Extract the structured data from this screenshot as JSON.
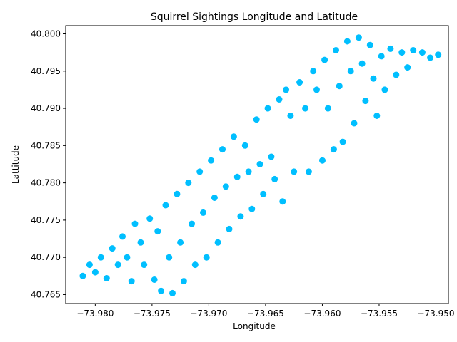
{
  "chart_data": {
    "type": "scatter",
    "title": "Squirrel Sightings Longitude and Latitude",
    "xlabel": "Longitude",
    "ylabel": "Lattitude",
    "xlim": [
      -73.9826,
      -73.9489
    ],
    "ylim": [
      40.7638,
      40.8011
    ],
    "xticks": [
      -73.98,
      -73.975,
      -73.97,
      -73.965,
      -73.96,
      -73.955,
      -73.95
    ],
    "xtick_labels": [
      "−73.980",
      "−73.975",
      "−73.970",
      "−73.965",
      "−73.960",
      "−73.955",
      "−73.950"
    ],
    "yticks": [
      40.765,
      40.77,
      40.775,
      40.78,
      40.785,
      40.79,
      40.795,
      40.8
    ],
    "ytick_labels": [
      "40.765",
      "40.770",
      "40.775",
      "40.780",
      "40.785",
      "40.790",
      "40.795",
      "40.800"
    ],
    "grid": false,
    "marker_color": "#00bfff",
    "series": [
      {
        "points": [
          [
            -73.9811,
            40.7675
          ],
          [
            -73.9805,
            40.769
          ],
          [
            -73.98,
            40.768
          ],
          [
            -73.9795,
            40.77
          ],
          [
            -73.979,
            40.7672
          ],
          [
            -73.9785,
            40.7712
          ],
          [
            -73.978,
            40.769
          ],
          [
            -73.9776,
            40.7728
          ],
          [
            -73.9772,
            40.77
          ],
          [
            -73.9768,
            40.7668
          ],
          [
            -73.9765,
            40.7745
          ],
          [
            -73.976,
            40.772
          ],
          [
            -73.9757,
            40.769
          ],
          [
            -73.9752,
            40.7752
          ],
          [
            -73.9748,
            40.767
          ],
          [
            -73.9745,
            40.7735
          ],
          [
            -73.9742,
            40.7655
          ],
          [
            -73.9738,
            40.777
          ],
          [
            -73.9735,
            40.77
          ],
          [
            -73.9732,
            40.7652
          ],
          [
            -73.9728,
            40.7785
          ],
          [
            -73.9725,
            40.772
          ],
          [
            -73.9722,
            40.7668
          ],
          [
            -73.9718,
            40.78
          ],
          [
            -73.9715,
            40.7745
          ],
          [
            -73.9712,
            40.769
          ],
          [
            -73.9708,
            40.7815
          ],
          [
            -73.9705,
            40.776
          ],
          [
            -73.9702,
            40.77
          ],
          [
            -73.9698,
            40.783
          ],
          [
            -73.9695,
            40.778
          ],
          [
            -73.9692,
            40.772
          ],
          [
            -73.9688,
            40.7845
          ],
          [
            -73.9685,
            40.7795
          ],
          [
            -73.9682,
            40.7738
          ],
          [
            -73.9678,
            40.7862
          ],
          [
            -73.9675,
            40.7808
          ],
          [
            -73.9672,
            40.7755
          ],
          [
            -73.9668,
            40.785
          ],
          [
            -73.9665,
            40.7815
          ],
          [
            -73.9662,
            40.7765
          ],
          [
            -73.9658,
            40.7885
          ],
          [
            -73.9655,
            40.7825
          ],
          [
            -73.9652,
            40.7785
          ],
          [
            -73.9648,
            40.79
          ],
          [
            -73.9645,
            40.7835
          ],
          [
            -73.9642,
            40.7805
          ],
          [
            -73.9638,
            40.7912
          ],
          [
            -73.9635,
            40.7775
          ],
          [
            -73.9632,
            40.7925
          ],
          [
            -73.9628,
            40.789
          ],
          [
            -73.9625,
            40.7815
          ],
          [
            -73.962,
            40.7935
          ],
          [
            -73.9615,
            40.79
          ],
          [
            -73.9612,
            40.7815
          ],
          [
            -73.9608,
            40.795
          ],
          [
            -73.9605,
            40.7925
          ],
          [
            -73.96,
            40.783
          ],
          [
            -73.9598,
            40.7965
          ],
          [
            -73.9595,
            40.79
          ],
          [
            -73.959,
            40.7845
          ],
          [
            -73.9588,
            40.7978
          ],
          [
            -73.9585,
            40.793
          ],
          [
            -73.9582,
            40.7855
          ],
          [
            -73.9578,
            40.799
          ],
          [
            -73.9575,
            40.795
          ],
          [
            -73.9572,
            40.788
          ],
          [
            -73.9568,
            40.7995
          ],
          [
            -73.9565,
            40.796
          ],
          [
            -73.9562,
            40.791
          ],
          [
            -73.9558,
            40.7985
          ],
          [
            -73.9555,
            40.794
          ],
          [
            -73.9552,
            40.789
          ],
          [
            -73.9548,
            40.797
          ],
          [
            -73.9545,
            40.7925
          ],
          [
            -73.954,
            40.798
          ],
          [
            -73.9535,
            40.7945
          ],
          [
            -73.953,
            40.7975
          ],
          [
            -73.9525,
            40.7955
          ],
          [
            -73.952,
            40.7978
          ],
          [
            -73.9512,
            40.7975
          ],
          [
            -73.9505,
            40.7968
          ],
          [
            -73.9498,
            40.7972
          ]
        ]
      }
    ]
  }
}
